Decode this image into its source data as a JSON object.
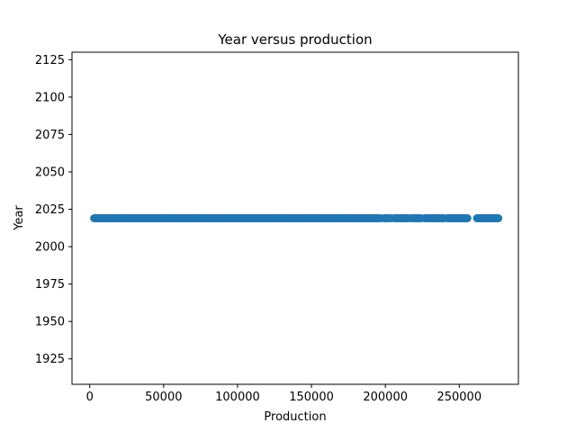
{
  "chart_data": {
    "type": "scatter",
    "title": "Year versus production",
    "xlabel": "Production",
    "ylabel": "Year",
    "xlim": [
      -12000,
      290000
    ],
    "ylim": [
      1908,
      2130
    ],
    "xticks": [
      0,
      50000,
      100000,
      150000,
      200000,
      250000
    ],
    "xtick_labels": [
      "0",
      "50000",
      "100000",
      "150000",
      "200000",
      "250000"
    ],
    "yticks": [
      1925,
      1950,
      1975,
      2000,
      2025,
      2050,
      2075,
      2100,
      2125
    ],
    "ytick_labels": [
      "1925",
      "1950",
      "1975",
      "2000",
      "2025",
      "2050",
      "2075",
      "2100",
      "2125"
    ],
    "grid": false,
    "point_color": "#1f77b4",
    "series": [
      {
        "year": 2019,
        "production_ranges": [
          [
            3000,
            197000
          ],
          [
            199000,
            204000
          ],
          [
            206000,
            216000
          ],
          [
            218000,
            225000
          ],
          [
            227000,
            240000
          ],
          [
            242000,
            256000
          ],
          [
            262000,
            277000
          ]
        ]
      }
    ]
  }
}
